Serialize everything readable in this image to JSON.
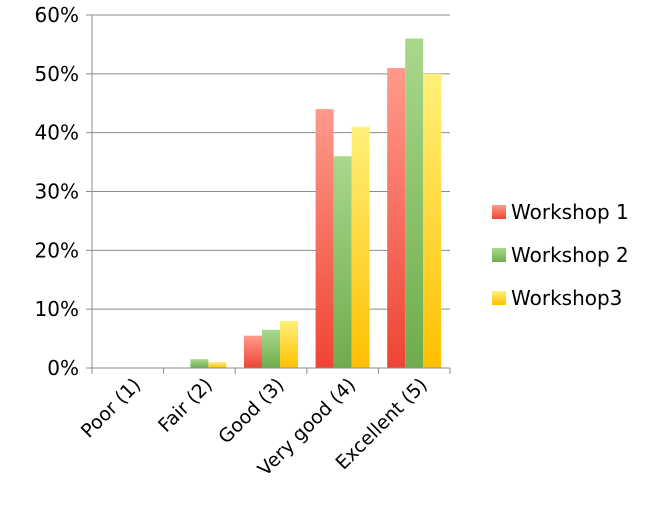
{
  "chart_data": {
    "type": "bar",
    "title": "",
    "xlabel": "",
    "ylabel": "",
    "categories": [
      "Poor (1)",
      "Fair (2)",
      "Good (3)",
      "Very good (4)",
      "Excellent (5)"
    ],
    "series": [
      {
        "name": "Workshop 1",
        "values": [
          0,
          0,
          5.5,
          44,
          51
        ],
        "color": "#ef4434",
        "color_light": "#ff9a8c"
      },
      {
        "name": "Workshop 2",
        "values": [
          0,
          1.5,
          6.5,
          36,
          56
        ],
        "color": "#6fac4c",
        "color_light": "#a9d88c"
      },
      {
        "name": "Workshop3",
        "values": [
          0,
          1,
          8,
          41,
          50
        ],
        "color": "#ffc000",
        "color_light": "#fff07a"
      }
    ],
    "ylim": [
      0,
      60
    ],
    "y_ticks": [
      "0%",
      "10%",
      "20%",
      "30%",
      "40%",
      "50%",
      "60%"
    ],
    "y_tick_values": [
      0,
      10,
      20,
      30,
      40,
      50,
      60
    ],
    "grid": true,
    "legend_position": "right"
  }
}
